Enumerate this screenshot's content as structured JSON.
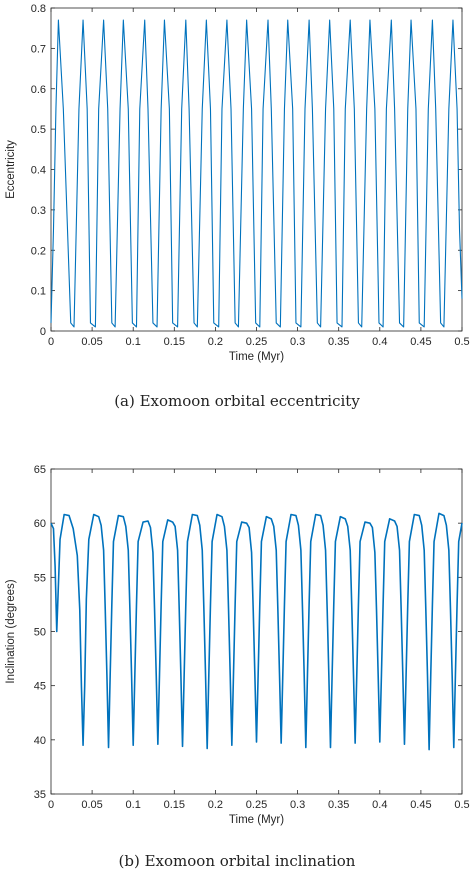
{
  "figure": {
    "captions": [
      "(a)  Exomoon orbital eccentricity",
      "(b)  Exomoon orbital inclination"
    ]
  },
  "chart_data": [
    {
      "type": "line",
      "xlabel": "Time (Myr)",
      "ylabel": "Eccentricity",
      "xlim": [
        0,
        0.5
      ],
      "ylim": [
        0,
        0.8
      ],
      "xticks": [
        "0",
        "0.05",
        "0.1",
        "0.15",
        "0.2",
        "0.25",
        "0.3",
        "0.35",
        "0.4",
        "0.45",
        "0.5"
      ],
      "yticks": [
        "0",
        "0.1",
        "0.2",
        "0.3",
        "0.4",
        "0.5",
        "0.6",
        "0.7",
        "0.8"
      ],
      "grid": false,
      "color": "#0072BD",
      "series": [
        {
          "x": [
            0,
            0.003,
            0.006,
            0.009,
            0.015,
            0.024,
            0.028,
            0.034,
            0.039,
            0.044,
            0.048,
            0.054,
            0.058,
            0.064,
            0.069,
            0.074,
            0.078,
            0.084,
            0.088,
            0.094,
            0.099,
            0.104,
            0.108,
            0.114,
            0.118,
            0.124,
            0.129,
            0.134,
            0.138,
            0.144,
            0.148,
            0.154,
            0.159,
            0.164,
            0.168,
            0.174,
            0.178,
            0.184,
            0.189,
            0.194,
            0.198,
            0.204,
            0.208,
            0.214,
            0.219,
            0.224,
            0.228,
            0.234,
            0.238,
            0.244,
            0.249,
            0.254,
            0.258,
            0.264,
            0.268,
            0.274,
            0.279,
            0.284,
            0.288,
            0.294,
            0.298,
            0.304,
            0.309,
            0.314,
            0.318,
            0.324,
            0.328,
            0.334,
            0.339,
            0.344,
            0.348,
            0.354,
            0.358,
            0.364,
            0.369,
            0.374,
            0.378,
            0.384,
            0.388,
            0.394,
            0.399,
            0.404,
            0.408,
            0.414,
            0.418,
            0.424,
            0.429,
            0.434,
            0.438,
            0.444,
            0.448,
            0.454,
            0.459,
            0.464,
            0.468,
            0.474,
            0.478,
            0.484,
            0.489,
            0.494,
            0.497,
            0.5
          ],
          "y": [
            0.02,
            0.25,
            0.55,
            0.77,
            0.55,
            0.02,
            0.01,
            0.55,
            0.77,
            0.55,
            0.02,
            0.01,
            0.55,
            0.77,
            0.55,
            0.02,
            0.01,
            0.55,
            0.77,
            0.55,
            0.02,
            0.01,
            0.55,
            0.77,
            0.55,
            0.02,
            0.01,
            0.55,
            0.77,
            0.55,
            0.02,
            0.01,
            0.55,
            0.77,
            0.55,
            0.02,
            0.01,
            0.55,
            0.77,
            0.55,
            0.02,
            0.01,
            0.55,
            0.77,
            0.55,
            0.02,
            0.01,
            0.55,
            0.77,
            0.55,
            0.02,
            0.01,
            0.55,
            0.77,
            0.55,
            0.02,
            0.01,
            0.55,
            0.77,
            0.55,
            0.02,
            0.01,
            0.55,
            0.77,
            0.55,
            0.02,
            0.01,
            0.55,
            0.77,
            0.55,
            0.02,
            0.01,
            0.55,
            0.77,
            0.55,
            0.02,
            0.01,
            0.55,
            0.77,
            0.55,
            0.02,
            0.01,
            0.55,
            0.77,
            0.55,
            0.02,
            0.01,
            0.55,
            0.77,
            0.55,
            0.02,
            0.01,
            0.55,
            0.77,
            0.55,
            0.02,
            0.01,
            0.55,
            0.77,
            0.55,
            0.25,
            0.08
          ]
        }
      ]
    },
    {
      "type": "line",
      "xlabel": "Time (Myr)",
      "ylabel": "Inclination (degrees)",
      "xlim": [
        0,
        0.5
      ],
      "ylim": [
        35,
        65
      ],
      "xticks": [
        "0",
        "0.05",
        "0.1",
        "0.15",
        "0.2",
        "0.25",
        "0.3",
        "0.35",
        "0.4",
        "0.45",
        "0.5"
      ],
      "yticks": [
        "35",
        "40",
        "45",
        "50",
        "55",
        "60",
        "65"
      ],
      "grid": false,
      "color": "#0072BD",
      "series": [
        {
          "x": [
            0,
            0.003,
            0.005,
            0.007,
            0.011,
            0.016,
            0.022,
            0.027,
            0.032,
            0.035,
            0.037,
            0.039,
            0.041,
            0.043,
            0.046,
            0.052,
            0.058,
            0.061,
            0.064,
            0.066,
            0.068,
            0.07,
            0.072,
            0.074,
            0.076,
            0.082,
            0.088,
            0.091,
            0.094,
            0.096,
            0.098,
            0.1,
            0.102,
            0.104,
            0.106,
            0.112,
            0.118,
            0.121,
            0.124,
            0.126,
            0.128,
            0.13,
            0.132,
            0.134,
            0.136,
            0.142,
            0.148,
            0.151,
            0.154,
            0.156,
            0.158,
            0.16,
            0.162,
            0.164,
            0.166,
            0.172,
            0.178,
            0.181,
            0.184,
            0.186,
            0.188,
            0.19,
            0.192,
            0.194,
            0.196,
            0.202,
            0.208,
            0.211,
            0.214,
            0.216,
            0.218,
            0.22,
            0.222,
            0.224,
            0.226,
            0.232,
            0.238,
            0.241,
            0.244,
            0.246,
            0.248,
            0.25,
            0.252,
            0.254,
            0.256,
            0.262,
            0.268,
            0.271,
            0.274,
            0.276,
            0.278,
            0.28,
            0.282,
            0.284,
            0.286,
            0.292,
            0.298,
            0.301,
            0.304,
            0.306,
            0.308,
            0.31,
            0.312,
            0.314,
            0.316,
            0.322,
            0.328,
            0.331,
            0.334,
            0.336,
            0.338,
            0.34,
            0.342,
            0.344,
            0.346,
            0.352,
            0.358,
            0.361,
            0.364,
            0.366,
            0.368,
            0.37,
            0.372,
            0.374,
            0.376,
            0.382,
            0.388,
            0.391,
            0.394,
            0.396,
            0.398,
            0.4,
            0.402,
            0.404,
            0.406,
            0.412,
            0.418,
            0.421,
            0.424,
            0.426,
            0.428,
            0.43,
            0.432,
            0.434,
            0.436,
            0.442,
            0.448,
            0.451,
            0.454,
            0.456,
            0.458,
            0.46,
            0.462,
            0.464,
            0.466,
            0.472,
            0.478,
            0.481,
            0.484,
            0.486,
            0.488,
            0.49,
            0.492,
            0.494,
            0.496,
            0.5
          ],
          "y": [
            60,
            59.5,
            56,
            50,
            58.5,
            60.8,
            60.7,
            59.5,
            57,
            52,
            45,
            39.5,
            45,
            53,
            58.5,
            60.8,
            60.6,
            59.8,
            57.5,
            52,
            46,
            39.3,
            46,
            52.5,
            58.3,
            60.7,
            60.6,
            59.7,
            57.5,
            52,
            46,
            39.5,
            46,
            52.5,
            58.3,
            60.1,
            60.2,
            59.6,
            57.3,
            52,
            46,
            39.6,
            46,
            52.5,
            58.3,
            60.3,
            60.1,
            59.7,
            57.5,
            52,
            46,
            39.4,
            46,
            52.5,
            58.3,
            60.8,
            60.7,
            59.8,
            57.5,
            52,
            46,
            39.2,
            46,
            52.5,
            58.3,
            60.8,
            60.6,
            59.7,
            57.5,
            52,
            46,
            39.5,
            46,
            52.5,
            58.3,
            60.1,
            60,
            59.6,
            57.3,
            52,
            46,
            39.8,
            46,
            52.5,
            58.3,
            60.6,
            60.4,
            59.7,
            57.5,
            52,
            46,
            39.7,
            46,
            52.5,
            58.3,
            60.8,
            60.7,
            59.8,
            57.5,
            52,
            46,
            39.3,
            46,
            52.5,
            58.3,
            60.8,
            60.7,
            59.8,
            57.5,
            52,
            46,
            39.3,
            46,
            52.5,
            58.3,
            60.6,
            60.4,
            59.7,
            57.5,
            52,
            46,
            39.7,
            46,
            52.5,
            58.3,
            60.1,
            60,
            59.6,
            57.3,
            52,
            46,
            39.8,
            46,
            52.5,
            58.3,
            60.4,
            60.2,
            59.7,
            57.5,
            52,
            46,
            39.6,
            46,
            52.5,
            58.3,
            60.8,
            60.7,
            59.8,
            57.5,
            52,
            46,
            39.1,
            46,
            52.5,
            58.3,
            60.9,
            60.7,
            59.8,
            57.5,
            52,
            46,
            39.3,
            46,
            52.5,
            58.3,
            60
          ]
        }
      ]
    }
  ]
}
